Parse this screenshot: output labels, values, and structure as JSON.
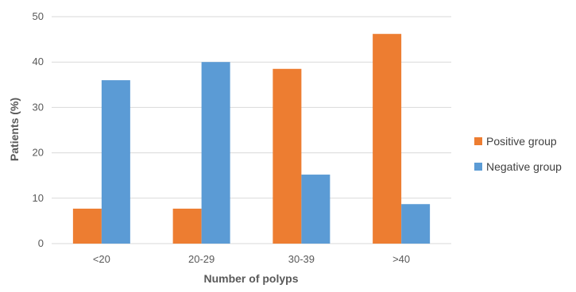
{
  "chart_data": {
    "type": "bar",
    "title": "",
    "xlabel": "Number of polyps",
    "ylabel": "Patients (%)",
    "categories": [
      "<20",
      "20-29",
      "30-39",
      ">40"
    ],
    "series": [
      {
        "name": "Positive group",
        "color": "#ed7d31",
        "values": [
          7.7,
          7.7,
          38.5,
          46.2
        ]
      },
      {
        "name": "Negative group",
        "color": "#5b9bd5",
        "values": [
          36.0,
          40.0,
          15.2,
          8.7
        ]
      }
    ],
    "ylim": [
      0,
      50
    ],
    "yticks": [
      0,
      10,
      20,
      30,
      40,
      50
    ],
    "grid": true,
    "legend_position": "right"
  }
}
